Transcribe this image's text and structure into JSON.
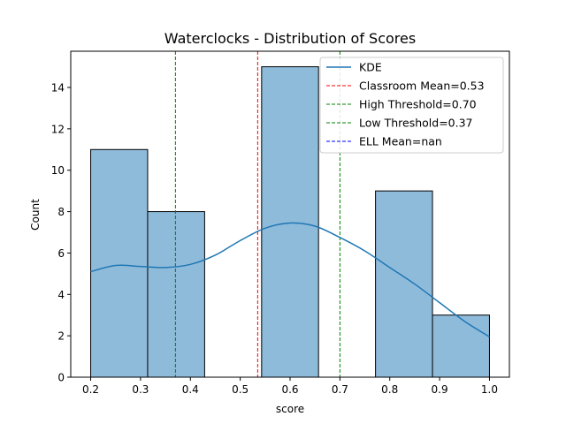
{
  "chart_data": {
    "type": "bar",
    "title": "Waterclocks - Distribution of Scores",
    "xlabel": "score",
    "ylabel": "Count",
    "xlim": [
      0.16,
      1.04
    ],
    "ylim": [
      0,
      15.75
    ],
    "xticks": [
      0.2,
      0.3,
      0.4,
      0.5,
      0.6,
      0.7,
      0.8,
      0.9,
      1.0
    ],
    "xtick_labels": [
      "0.2",
      "0.3",
      "0.4",
      "0.5",
      "0.6",
      "0.7",
      "0.8",
      "0.9",
      "1.0"
    ],
    "yticks": [
      0,
      2,
      4,
      6,
      8,
      10,
      12,
      14
    ],
    "ytick_labels": [
      "0",
      "2",
      "4",
      "6",
      "8",
      "10",
      "12",
      "14"
    ],
    "grid": false,
    "legend_position": "top-right",
    "bins": [
      {
        "x0": 0.2,
        "x1": 0.3143,
        "count": 11
      },
      {
        "x0": 0.3143,
        "x1": 0.4286,
        "count": 8
      },
      {
        "x0": 0.4286,
        "x1": 0.5429,
        "count": 0
      },
      {
        "x0": 0.5429,
        "x1": 0.6571,
        "count": 15
      },
      {
        "x0": 0.6571,
        "x1": 0.7714,
        "count": 0
      },
      {
        "x0": 0.7714,
        "x1": 0.8857,
        "count": 9
      },
      {
        "x0": 0.8857,
        "x1": 1.0,
        "count": 3
      }
    ],
    "bar_color": "#8fbbdb",
    "kde": {
      "name": "KDE",
      "color": "#1f77b4",
      "x": [
        0.2,
        0.25,
        0.3,
        0.35,
        0.4,
        0.45,
        0.5,
        0.55,
        0.6,
        0.65,
        0.7,
        0.75,
        0.8,
        0.85,
        0.9,
        0.95,
        1.0
      ],
      "y": [
        5.1,
        5.4,
        5.35,
        5.3,
        5.45,
        5.9,
        6.6,
        7.2,
        7.45,
        7.3,
        6.75,
        6.1,
        5.3,
        4.5,
        3.6,
        2.7,
        1.95
      ]
    },
    "vlines": [
      {
        "name": "Classroom Mean=0.53",
        "x": 0.535,
        "color": "#ff0000"
      },
      {
        "name": "High Threshold=0.70",
        "x": 0.7,
        "color": "#008000"
      },
      {
        "name": "Low Threshold=0.37",
        "x": 0.37,
        "color": "#008000"
      },
      {
        "name": "ELL Mean=nan",
        "x": null,
        "color": "#0000ff"
      }
    ]
  }
}
